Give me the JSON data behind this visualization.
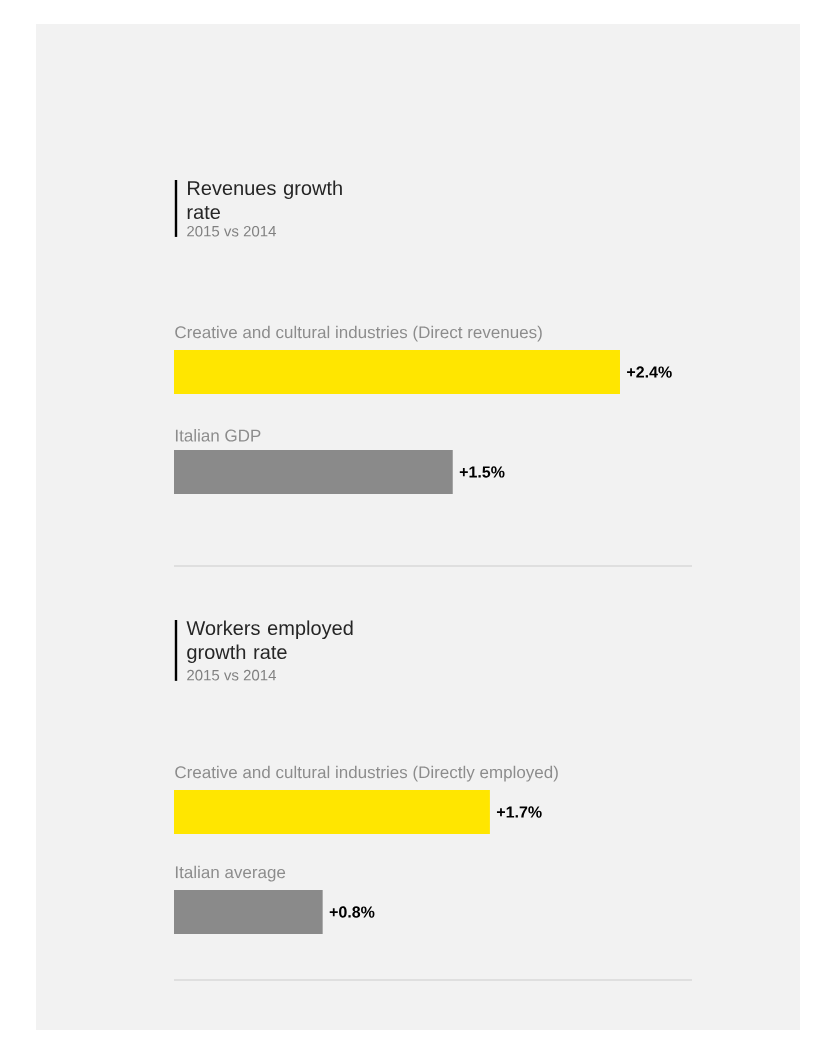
{
  "chart_data": [
    {
      "type": "bar",
      "orientation": "horizontal",
      "title": "Revenues growth rate",
      "subtitle": "2015 vs 2014",
      "categories": [
        "Creative and cultural industries (Direct revenues)",
        "Italian GDP"
      ],
      "values": [
        2.4,
        1.5
      ],
      "colors": [
        "#ffe600",
        "#8a8a8a"
      ],
      "value_labels": [
        "+2.4%",
        "+1.5%"
      ]
    },
    {
      "type": "bar",
      "orientation": "horizontal",
      "title": "Workers employed growth rate",
      "subtitle": "2015 vs 2014",
      "categories": [
        "Creative and cultural industries (Directly employed)",
        "Italian average"
      ],
      "values": [
        1.7,
        0.8
      ],
      "colors": [
        "#ffe600",
        "#8a8a8a"
      ],
      "value_labels": [
        "+1.7%",
        "+0.8%"
      ]
    }
  ]
}
